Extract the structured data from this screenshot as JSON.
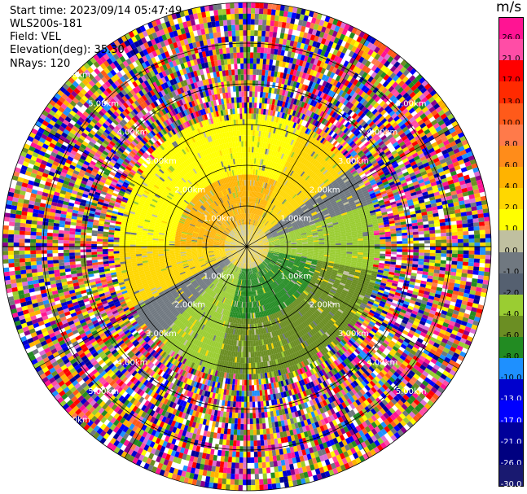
{
  "header": {
    "start_time": "Start time: 2023/09/14 05:47:49",
    "instrument": "WLS200s-181",
    "field": "Field: VEL",
    "elevation": "Elevation(deg): 35.30",
    "nrays": "NRays: 120"
  },
  "colorbar": {
    "unit": "m/s",
    "levels": [
      "26.0",
      "21.0",
      "17.0",
      "13.0",
      "10.0",
      "8.0",
      "6.0",
      "4.0",
      "2.0",
      "1.0",
      "0.0",
      "-1.0",
      "-2.0",
      "-4.0",
      "-6.0",
      "-8.0",
      "-10.0",
      "-13.0",
      "-17.0",
      "-21.0",
      "-26.0",
      "-30.0"
    ],
    "colors": [
      "#ff1493",
      "#ff4da6",
      "#ff0000",
      "#ff2a00",
      "#ff5a1a",
      "#ff7a4a",
      "#ff8c1a",
      "#ffb300",
      "#ffd700",
      "#ffff00",
      "#c0c0a0",
      "#707880",
      "#556070",
      "#9acd32",
      "#6b8e23",
      "#228b22",
      "#1e90ff",
      "#0000cd",
      "#0000ff",
      "#000099",
      "#000080",
      "#191970"
    ],
    "values": [
      26.0,
      21.0,
      17.0,
      13.0,
      10.0,
      8.0,
      6.0,
      4.0,
      2.0,
      1.0,
      0.0,
      -1.0,
      -2.0,
      -4.0,
      -6.0,
      -8.0,
      -10.0,
      -13.0,
      -17.0,
      -21.0,
      -26.0,
      -30.0
    ]
  },
  "chart_data": {
    "type": "heatmap",
    "projection": "polar-ppi",
    "field": "VEL",
    "nrays": 120,
    "range_rings_km": [
      1.0,
      2.0,
      3.0,
      4.0,
      5.0,
      6.0
    ],
    "ring_labels": [
      "1.00km",
      "2.00km",
      "3.00km",
      "4.00km",
      "5.00km",
      "6.00km"
    ],
    "spokes_deg": 30,
    "value_range": [
      -30.0,
      26.0
    ],
    "coherent_range_km": 3.2
  }
}
